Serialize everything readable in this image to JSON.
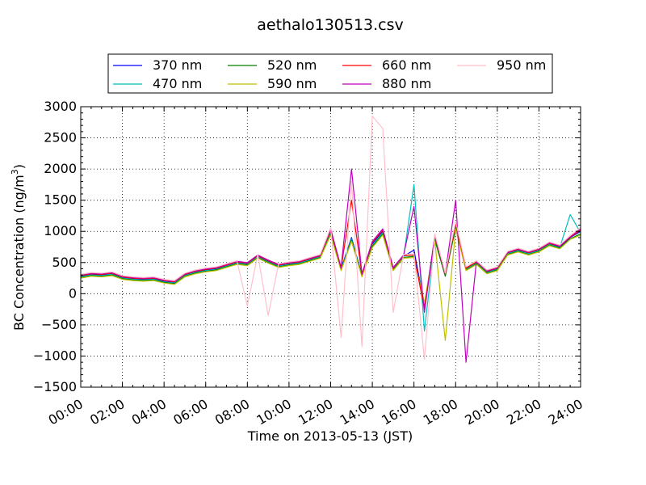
{
  "chart_data": {
    "type": "line",
    "title": "aethalo130513.csv",
    "xlabel": "Time on 2013-05-13 (JST)",
    "ylabel_main": "BC Concentration (ng/m",
    "ylabel_sup": "3",
    "ylabel_close": ")",
    "xlim": [
      0,
      24
    ],
    "ylim": [
      -1500,
      3000
    ],
    "grid": true,
    "legend_position": "top",
    "x_ticks": [
      0,
      2,
      4,
      6,
      8,
      10,
      12,
      14,
      16,
      18,
      20,
      22,
      24
    ],
    "x_tick_labels": [
      "00:00",
      "02:00",
      "04:00",
      "06:00",
      "08:00",
      "10:00",
      "12:00",
      "14:00",
      "16:00",
      "18:00",
      "20:00",
      "22:00",
      "24:00"
    ],
    "y_ticks": [
      -1500,
      -1000,
      -500,
      0,
      500,
      1000,
      1500,
      2000,
      2500,
      3000
    ],
    "y_tick_labels": [
      "−1500",
      "−1000",
      "−500",
      "0",
      "500",
      "1000",
      "1500",
      "2000",
      "2500",
      "3000"
    ],
    "x": [
      0.0,
      0.5,
      1.0,
      1.5,
      2.0,
      2.5,
      3.0,
      3.5,
      4.0,
      4.5,
      5.0,
      5.5,
      6.0,
      6.5,
      7.0,
      7.5,
      8.0,
      8.5,
      9.0,
      9.5,
      10.0,
      10.5,
      11.0,
      11.5,
      12.0,
      12.5,
      13.0,
      13.5,
      14.0,
      14.5,
      15.0,
      15.5,
      16.0,
      16.5,
      17.0,
      17.5,
      18.0,
      18.5,
      19.0,
      19.5,
      20.0,
      20.5,
      21.0,
      21.5,
      22.0,
      22.5,
      23.0,
      23.5,
      24.0
    ],
    "series": [
      {
        "name": "370 nm",
        "color": "#0000ff",
        "values": [
          280,
          310,
          300,
          320,
          260,
          240,
          230,
          240,
          200,
          180,
          300,
          350,
          380,
          400,
          450,
          500,
          480,
          600,
          520,
          450,
          480,
          500,
          550,
          600,
          1000,
          400,
          900,
          300,
          800,
          1000,
          400,
          600,
          700,
          -200,
          900,
          300,
          1100,
          400,
          500,
          350,
          400,
          650,
          700,
          650,
          700,
          800,
          750,
          900,
          1000
        ]
      },
      {
        "name": "470 nm",
        "color": "#00bfbf",
        "values": [
          270,
          300,
          290,
          310,
          250,
          230,
          220,
          230,
          190,
          170,
          290,
          340,
          370,
          390,
          440,
          490,
          470,
          590,
          510,
          440,
          470,
          490,
          540,
          590,
          980,
          390,
          880,
          290,
          780,
          980,
          390,
          590,
          1750,
          -600,
          880,
          290,
          1080,
          390,
          490,
          340,
          390,
          640,
          690,
          640,
          690,
          790,
          740,
          1270,
          980
        ]
      },
      {
        "name": "520 nm",
        "color": "#008000",
        "values": [
          260,
          290,
          280,
          300,
          240,
          220,
          210,
          220,
          180,
          160,
          280,
          330,
          360,
          380,
          430,
          480,
          460,
          580,
          500,
          430,
          460,
          480,
          530,
          580,
          960,
          380,
          860,
          280,
          760,
          960,
          380,
          580,
          600,
          -200,
          860,
          280,
          1060,
          380,
          480,
          330,
          380,
          630,
          680,
          630,
          680,
          780,
          730,
          880,
          960
        ]
      },
      {
        "name": "590 nm",
        "color": "#bfbf00",
        "values": [
          250,
          280,
          270,
          290,
          230,
          210,
          200,
          210,
          170,
          150,
          270,
          320,
          350,
          370,
          420,
          470,
          450,
          570,
          490,
          420,
          450,
          470,
          520,
          570,
          940,
          370,
          840,
          270,
          740,
          940,
          370,
          570,
          580,
          -150,
          840,
          -750,
          1040,
          370,
          470,
          320,
          370,
          620,
          670,
          620,
          670,
          770,
          720,
          870,
          940
        ]
      },
      {
        "name": "660 nm",
        "color": "#ff0000",
        "values": [
          290,
          320,
          310,
          330,
          270,
          250,
          240,
          250,
          210,
          190,
          310,
          360,
          390,
          410,
          460,
          510,
          490,
          610,
          530,
          460,
          490,
          510,
          560,
          610,
          1020,
          410,
          1500,
          310,
          820,
          1020,
          410,
          610,
          620,
          -250,
          920,
          310,
          1120,
          410,
          510,
          360,
          410,
          660,
          710,
          660,
          710,
          810,
          760,
          910,
          1020
        ]
      },
      {
        "name": "880 nm",
        "color": "#bf00bf",
        "values": [
          300,
          330,
          320,
          340,
          280,
          260,
          250,
          260,
          220,
          200,
          320,
          370,
          400,
          420,
          470,
          520,
          500,
          620,
          540,
          470,
          500,
          520,
          570,
          620,
          1040,
          420,
          2000,
          320,
          840,
          1040,
          420,
          620,
          1400,
          -300,
          940,
          320,
          1500,
          -1100,
          520,
          370,
          420,
          670,
          720,
          670,
          720,
          820,
          770,
          920,
          1040
        ]
      },
      {
        "name": "950 nm",
        "color": "#ffc0cb",
        "values": [
          310,
          340,
          330,
          350,
          290,
          270,
          260,
          270,
          230,
          210,
          330,
          380,
          410,
          430,
          480,
          530,
          -200,
          630,
          -350,
          480,
          510,
          530,
          580,
          630,
          1060,
          -700,
          1800,
          -850,
          2850,
          2650,
          -300,
          630,
          640,
          -1050,
          960,
          330,
          1160,
          430,
          530,
          380,
          430,
          680,
          730,
          680,
          730,
          830,
          780,
          930,
          1060
        ]
      }
    ]
  }
}
